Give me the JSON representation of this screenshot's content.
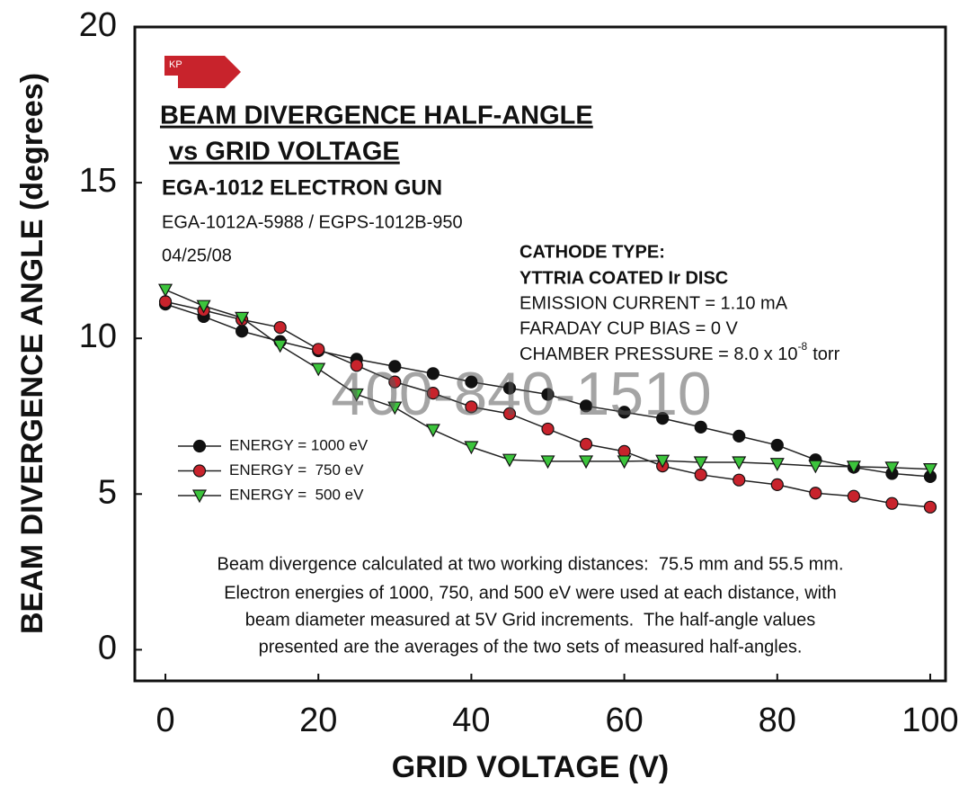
{
  "chart_data": {
    "type": "line",
    "title": "BEAM DIVERGENCE HALF-ANGLE",
    "title_line2": "vs GRID VOLTAGE",
    "subtitle": "EGA-1012 ELECTRON GUN",
    "model": "EGA-1012A-5988 / EGPS-1012B-950",
    "date": "04/25/08",
    "logo": "KP",
    "cathode": [
      "CATHODE TYPE:",
      "YTTRIA COATED Ir DISC"
    ],
    "conditions": [
      "EMISSION CURRENT = 1.10 mA",
      "FARADAY CUP BIAS = 0 V"
    ],
    "pressure": {
      "text": "CHAMBER PRESSURE = 8.0 x 10",
      "exponent": "-8",
      "unit": "torr"
    },
    "note": [
      "Beam divergence calculated at two working distances:  75.5 mm and 55.5 mm.",
      "Electron energies of 1000, 750, and 500 eV were used at each distance, with",
      "beam diameter measured at 5V Grid increments.  The half-angle values",
      "presented are the averages of the two sets of measured half-angles."
    ],
    "watermark": "400-840-1510",
    "x_label": "GRID VOLTAGE (V)",
    "y_label": "BEAM DIVERGENCE ANGLE (degrees)",
    "x": [
      0,
      5,
      10,
      15,
      20,
      25,
      30,
      35,
      40,
      45,
      50,
      55,
      60,
      65,
      70,
      75,
      80,
      85,
      90,
      95,
      100
    ],
    "series": [
      {
        "name": "ENERGY = 1000 eV",
        "color": "#111111",
        "marker": "circle",
        "values": [
          11.1,
          10.7,
          10.23,
          9.9,
          9.6,
          9.33,
          9.1,
          8.87,
          8.6,
          8.4,
          8.2,
          7.83,
          7.63,
          7.43,
          7.15,
          6.86,
          6.57,
          6.1,
          5.86,
          5.66,
          5.56
        ]
      },
      {
        "name": "ENERGY =  750 eV",
        "color": "#c8232c",
        "marker": "circle",
        "values": [
          11.18,
          10.9,
          10.6,
          10.35,
          9.65,
          9.13,
          8.6,
          8.24,
          7.8,
          7.58,
          7.09,
          6.6,
          6.37,
          5.9,
          5.62,
          5.45,
          5.3,
          5.03,
          4.93,
          4.7,
          4.58
        ]
      },
      {
        "name": "ENERGY =  500 eV",
        "color": "#3cc43c",
        "marker": "triangle-down",
        "values": [
          11.56,
          11.04,
          10.66,
          9.77,
          9.02,
          8.2,
          7.78,
          7.06,
          6.51,
          6.1,
          6.05,
          6.05,
          6.05,
          6.07,
          6.02,
          6.02,
          5.97,
          5.9,
          5.88,
          5.85,
          5.8
        ]
      }
    ],
    "xlim": [
      -4,
      102
    ],
    "ylim": [
      -1,
      20
    ],
    "xticks": [
      0,
      20,
      40,
      60,
      80,
      100
    ],
    "yticks": [
      0,
      5,
      10,
      15,
      20
    ]
  }
}
